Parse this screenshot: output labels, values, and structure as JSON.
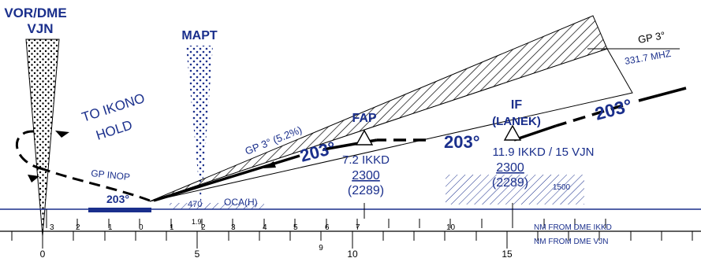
{
  "colors": {
    "blue": "#1a2f8c",
    "black": "#000000"
  },
  "stations": {
    "vor": {
      "line1": "VOR/DME",
      "line2": "VJN"
    },
    "mapt": "MAPT",
    "fap": {
      "label": "FAP",
      "distance": "7.2 IKKD",
      "altitude": "2300",
      "altitude_height": "(2289)"
    },
    "if": {
      "label": "IF",
      "fix": "(LANEK)",
      "distance": "11.9 IKKD / 15 VJN",
      "altitude": "2300",
      "altitude_height": "(2289)",
      "msa_note": "1500"
    }
  },
  "glidepath": {
    "label": "GP 3°",
    "frequency": "331.7 MHZ",
    "slope_label": "GP 3° (5.2%)"
  },
  "courses": {
    "inbound": "203°",
    "inbound_mid": "203°",
    "inbound_fap": "203°",
    "missed": "203°"
  },
  "missed_approach": {
    "instruction": "TO IKONO\nHOLD",
    "instruction_line1": "TO IKONO",
    "instruction_line2": "HOLD",
    "gp_inop": "GP INOP"
  },
  "oca": {
    "label": "OCA(H)",
    "value": "470",
    "mapt_distance": "1.9"
  },
  "scales": {
    "ikkd": {
      "caption": "NM FROM DME IKKD",
      "ticks": [
        "3",
        "2",
        "1",
        "0",
        "1",
        "2",
        "3",
        "4",
        "5",
        "6",
        "7",
        "10"
      ]
    },
    "vjn": {
      "caption": "NM FROM DME VJN",
      "ticks": [
        "0",
        "5",
        "9",
        "10",
        "15"
      ]
    }
  },
  "legend": {
    "items": []
  }
}
